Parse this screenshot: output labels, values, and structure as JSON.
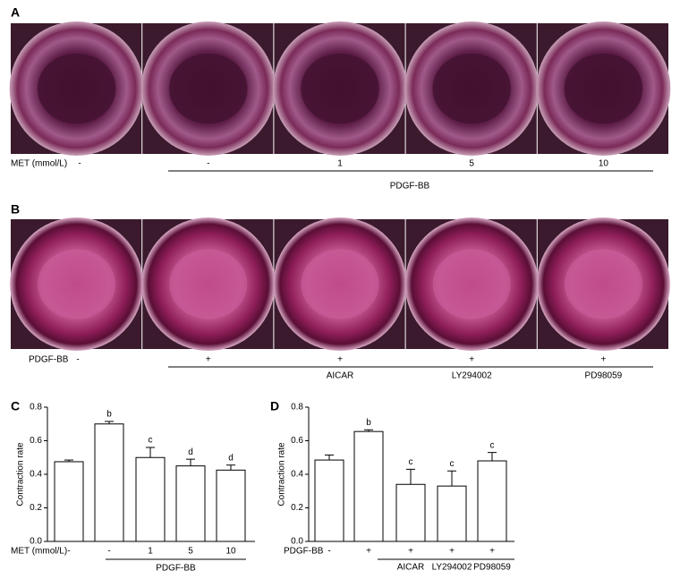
{
  "panels": [
    {
      "label": "A",
      "row_label": "MET (mmol/L)",
      "labels": [
        "-",
        "-",
        "1",
        "5",
        "10"
      ],
      "group_label": "PDGF-BB"
    },
    {
      "label": "B",
      "row_label": "PDGF-BB",
      "labels": [
        "-",
        "+",
        "+",
        "+",
        "+"
      ],
      "labels2": [
        null,
        null,
        "AICAR",
        "LY294002",
        "PD98059"
      ]
    }
  ],
  "chart_data": [
    {
      "type": "bar",
      "label": "C",
      "ylabel": "Contraction rate",
      "xlabel": "MET (mmol/L)",
      "categories": [
        "-",
        "-",
        "1",
        "5",
        "10"
      ],
      "group_label": "PDGF-BB",
      "values": [
        0.475,
        0.7,
        0.5,
        0.45,
        0.425
      ],
      "errors": [
        0.01,
        0.015,
        0.06,
        0.04,
        0.03
      ],
      "annotations": [
        null,
        "b",
        "c",
        "d",
        "d"
      ],
      "color": "#ffffff",
      "ylim": [
        0,
        0.8
      ],
      "yticks": [
        {
          "value": 0,
          "label": "0.0"
        },
        0.2,
        0.4,
        0.6,
        0.8
      ]
    },
    {
      "type": "bar",
      "label": "D",
      "ylabel": "Contraction rate",
      "xlabel": "PDGF-BB",
      "categories": [
        "-",
        "+",
        "+",
        "+",
        "+"
      ],
      "categories2": [
        null,
        null,
        "AICAR",
        "LY294002",
        "PD98059"
      ],
      "values": [
        0.485,
        0.655,
        0.34,
        0.33,
        0.48
      ],
      "errors": [
        0.03,
        0.01,
        0.09,
        0.09,
        0.05
      ],
      "annotations": [
        null,
        "b",
        "c",
        "c",
        "c"
      ],
      "color": "#ffffff",
      "ylim": [
        0,
        0.8
      ],
      "yticks": [
        {
          "value": 0,
          "label": "0.0"
        },
        0.2,
        0.4,
        0.6,
        0.8
      ]
    }
  ]
}
